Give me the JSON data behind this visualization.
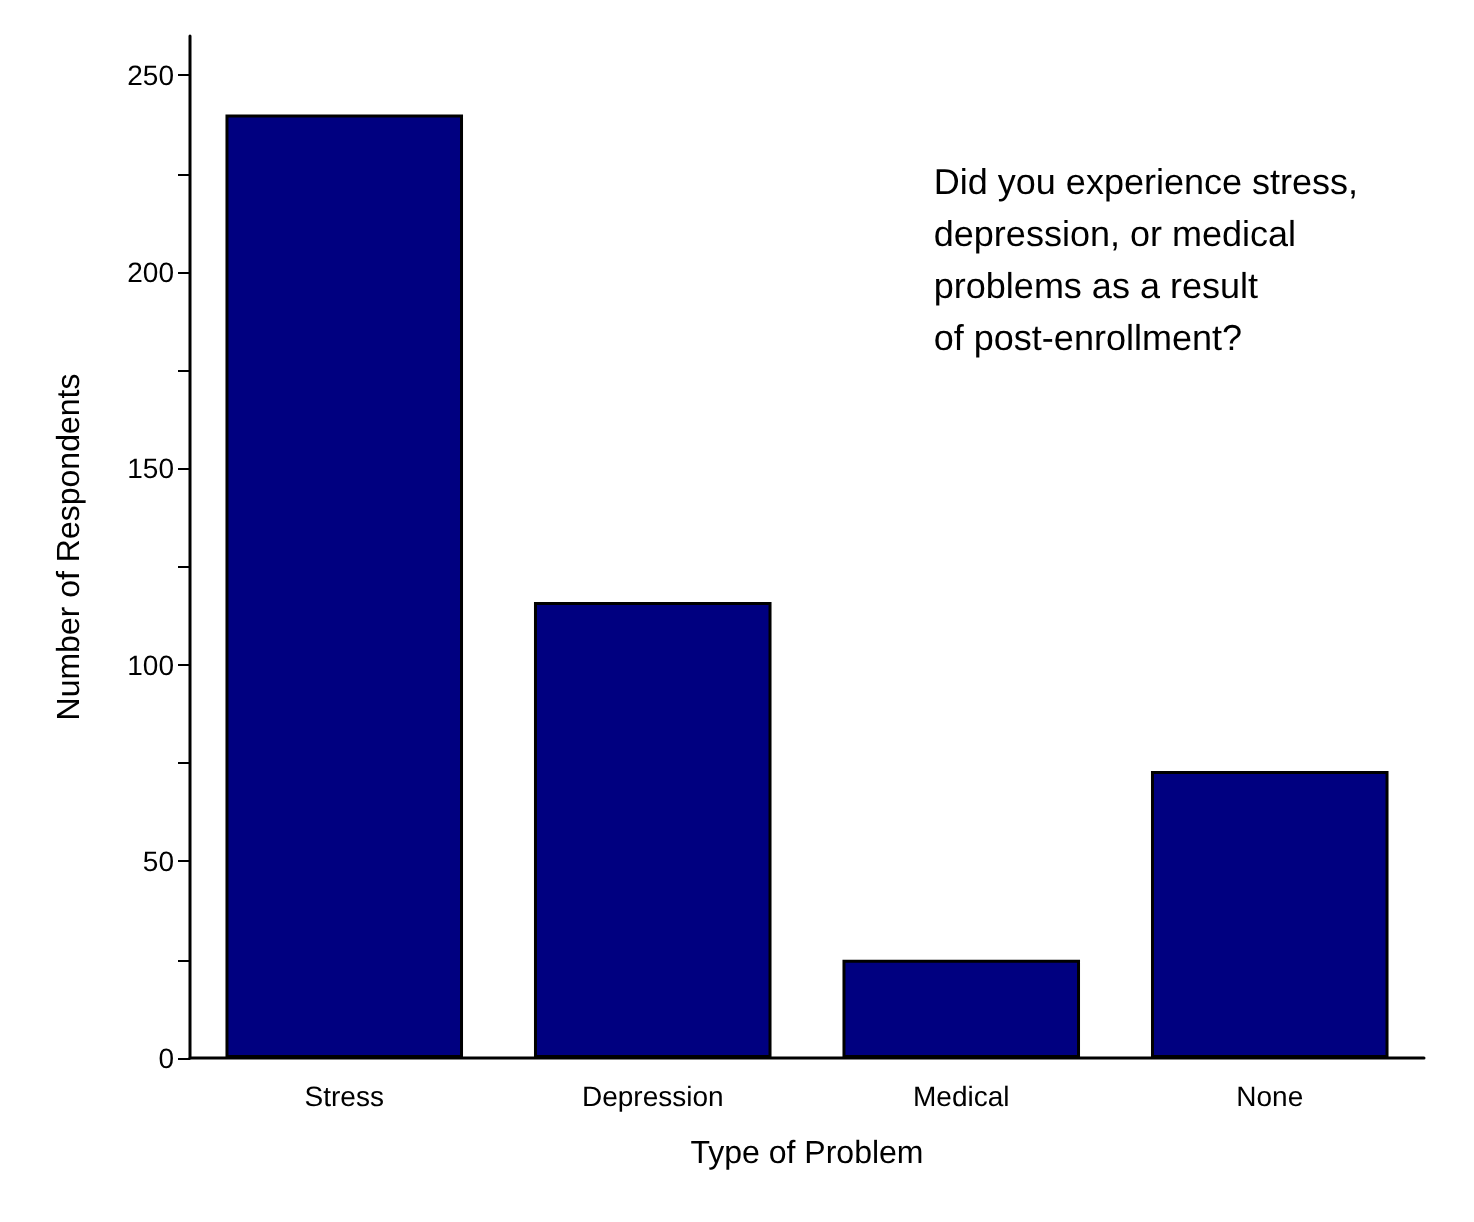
{
  "chart_data": {
    "type": "bar",
    "xlabel": "Type of Problem",
    "ylabel": "Number of Respondents",
    "categories": [
      "Stress",
      "Depression",
      "Medical",
      "None"
    ],
    "values": [
      240,
      116,
      25,
      73
    ],
    "color": "#000080",
    "ylim": [
      0,
      260
    ],
    "yticks": [
      0,
      {
        "value": 25,
        "label": null
      },
      50,
      {
        "value": 75,
        "label": null
      },
      100,
      {
        "value": 125,
        "label": null
      },
      150,
      {
        "value": 175,
        "label": null
      },
      200,
      {
        "value": 225,
        "label": null
      },
      250
    ],
    "grid": false,
    "annotations": [
      "Did you experience stress,\ndepression, or medical\nproblems as a result\nof post-enrollment?"
    ]
  }
}
